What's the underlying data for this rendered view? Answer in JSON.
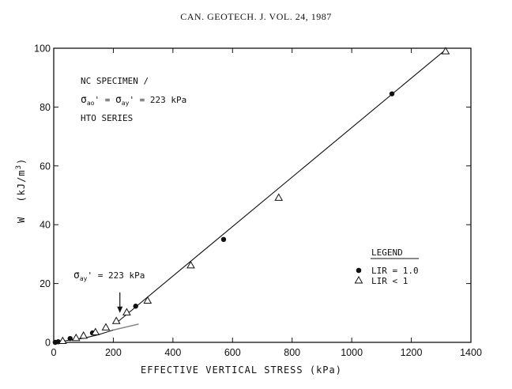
{
  "header": "CAN. GEOTECH. J. VOL. 24, 1987",
  "chart_data": {
    "type": "scatter",
    "xlabel": "EFFECTIVE VERTICAL STRESS (kPa)",
    "ylabel_parts": {
      "w": "W",
      "unit_open": "(kJ/m",
      "exp": "3",
      "unit_close": ")"
    },
    "xlim": [
      0,
      1400
    ],
    "ylim": [
      0,
      100
    ],
    "x_ticks": [
      0,
      200,
      400,
      600,
      800,
      1000,
      1200,
      1400
    ],
    "y_ticks": [
      0,
      20,
      40,
      60,
      80,
      100
    ],
    "series": [
      {
        "name": "LIR = 1.0",
        "marker": "filled-circle",
        "points": [
          [
            5,
            0
          ],
          [
            15,
            0.2
          ],
          [
            55,
            1.3
          ],
          [
            130,
            3.2
          ],
          [
            275,
            12.3
          ],
          [
            570,
            35
          ],
          [
            1135,
            84.5
          ]
        ]
      },
      {
        "name": "LIR < 1",
        "marker": "open-triangle",
        "points": [
          [
            30,
            0.5
          ],
          [
            75,
            1.5
          ],
          [
            100,
            2.3
          ],
          [
            140,
            3.5
          ],
          [
            175,
            5.1
          ],
          [
            210,
            7.3
          ],
          [
            245,
            10.2
          ],
          [
            315,
            14.2
          ],
          [
            460,
            26.2
          ],
          [
            755,
            49.2
          ],
          [
            1315,
            99
          ]
        ]
      }
    ],
    "fit_lines": [
      {
        "role": "curve",
        "points": [
          [
            0,
            0
          ],
          [
            100,
            1.4
          ],
          [
            150,
            2.6
          ],
          [
            200,
            4.2
          ]
        ]
      },
      {
        "role": "main",
        "points": [
          [
            215,
            7
          ],
          [
            1315,
            99.5
          ]
        ]
      },
      {
        "role": "extension",
        "points": [
          [
            200,
            4.2
          ],
          [
            285,
            6.2
          ]
        ]
      }
    ],
    "annotations": {
      "specimen": "NC SPECIMEN /",
      "sigma_line": {
        "s1": "σ",
        "sub1": "ao",
        "mid": "' = ",
        "s2": "σ",
        "sub2": "ay",
        "rest": "' = 223 kPa"
      },
      "series_name": "HTO SERIES",
      "arrow_label": {
        "s": "σ",
        "sub": "ay",
        "rest": "' = 223 kPa"
      },
      "arrow_target": [
        222,
        10
      ]
    },
    "legend": {
      "title": "LEGEND",
      "position": "right-middle"
    }
  }
}
